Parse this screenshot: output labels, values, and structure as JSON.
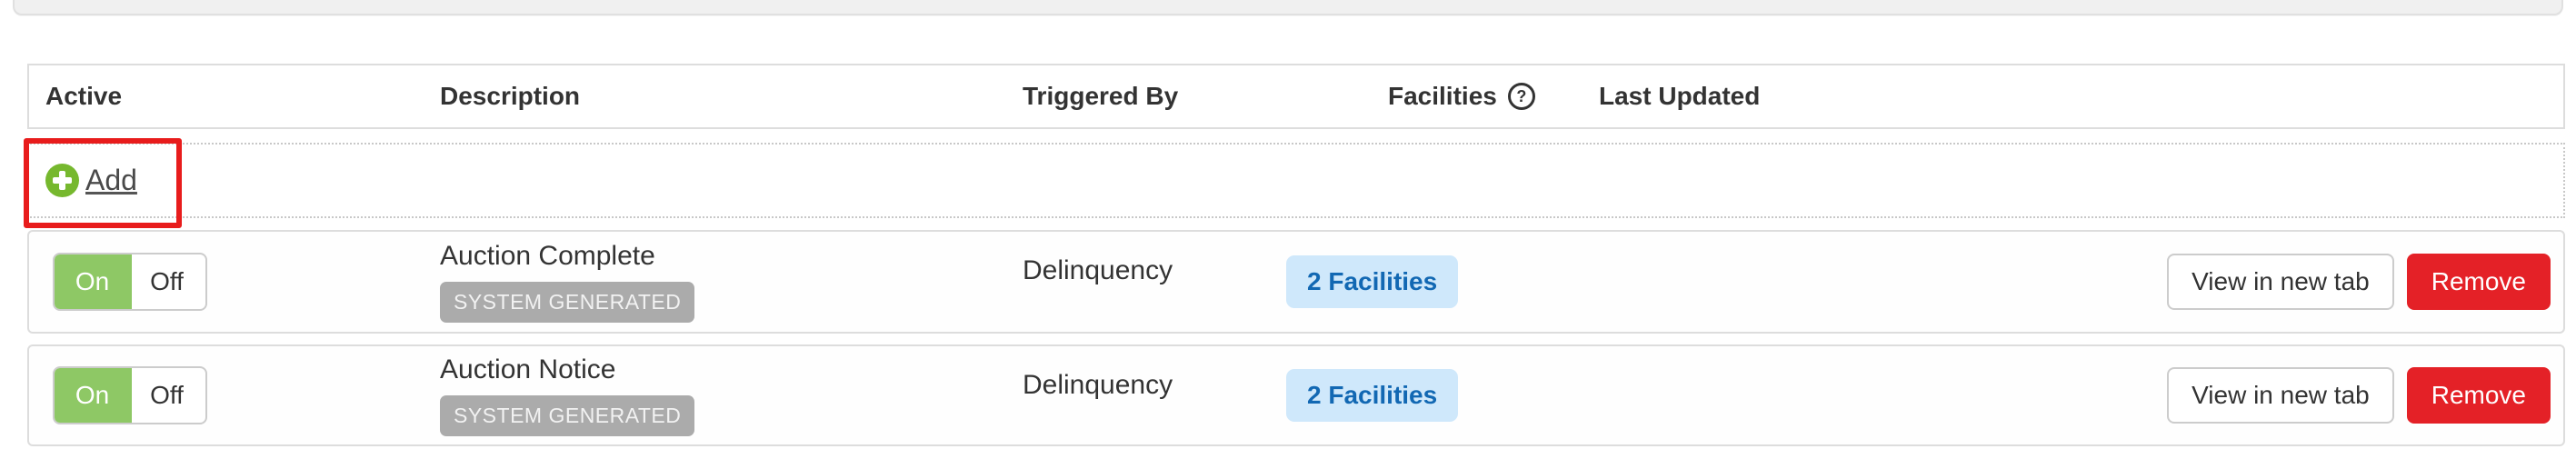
{
  "table": {
    "columns": [
      {
        "label": "Active"
      },
      {
        "label": "Description"
      },
      {
        "label": "Triggered By"
      },
      {
        "label": "Facilities",
        "help_icon_glyph": "?"
      },
      {
        "label": "Last Updated"
      }
    ],
    "add_row": {
      "label": "Add"
    },
    "rows": [
      {
        "toggle_on": "On",
        "toggle_off": "Off",
        "toggle_state": "on",
        "description": "Auction Complete",
        "description_badge": "SYSTEM GENERATED",
        "triggered_by": "Delinquency",
        "facilities_badge": "2 Facilities",
        "last_updated": "",
        "view_button": "View in new tab",
        "remove_button": "Remove"
      },
      {
        "toggle_on": "On",
        "toggle_off": "Off",
        "toggle_state": "on",
        "description": "Auction Notice",
        "description_badge": "SYSTEM GENERATED",
        "triggered_by": "Delinquency",
        "facilities_badge": "2 Facilities",
        "last_updated": "",
        "view_button": "View in new tab",
        "remove_button": "Remove"
      }
    ]
  },
  "annotation": {
    "type": "highlight-box",
    "target": "add-button"
  },
  "colors": {
    "toggle_on_green": "#8ec865",
    "remove_red": "#e42127",
    "facilities_badge_bg": "#cfe8fb",
    "facilities_badge_text": "#1268b3",
    "system_badge_bg": "#ababab",
    "add_plus_green": "#76b82e",
    "annotation_red": "#e81c1c",
    "border_gray": "#dddddd"
  }
}
